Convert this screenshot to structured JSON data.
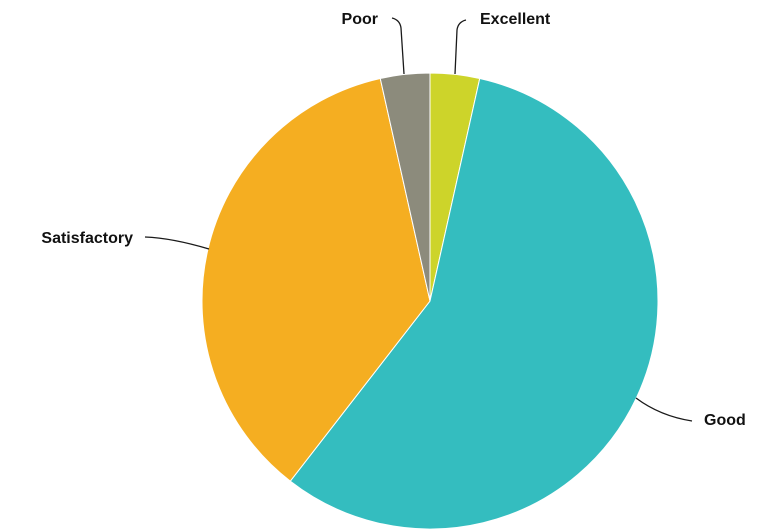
{
  "chart_data": {
    "type": "pie",
    "title": "",
    "start_angle_deg": 0,
    "direction": "clockwise",
    "slices": [
      {
        "label": "Excellent",
        "value": 3.5,
        "color": "#cdd42a"
      },
      {
        "label": "Good",
        "value": 57.0,
        "color": "#34bdbf"
      },
      {
        "label": "Satisfactory",
        "value": 36.0,
        "color": "#f5ae21"
      },
      {
        "label": "Poor",
        "value": 3.5,
        "color": "#8c8b7c"
      }
    ],
    "legend": "none",
    "labels": "outside with leader lines"
  }
}
